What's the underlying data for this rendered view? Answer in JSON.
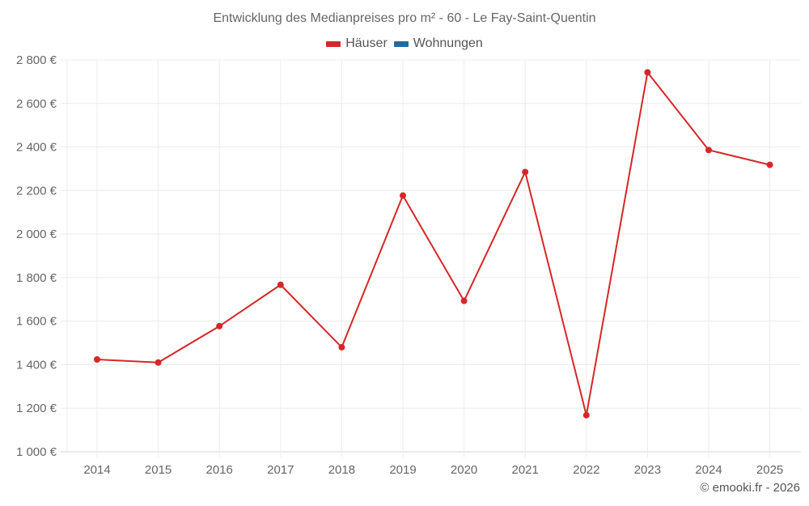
{
  "title": "Entwicklung des Medianpreises pro m² - 60 - Le Fay-Saint-Quentin",
  "legend": [
    {
      "label": "Häuser",
      "color": "#d62728"
    },
    {
      "label": "Wohnungen",
      "color": "#1f6aa5"
    }
  ],
  "credit": "© emooki.fr - 2026",
  "chart_data": {
    "type": "line",
    "title": "Entwicklung des Medianpreises pro m² - 60 - Le Fay-Saint-Quentin",
    "xlabel": "",
    "ylabel": "",
    "categories": [
      "2014",
      "2015",
      "2016",
      "2017",
      "2018",
      "2019",
      "2020",
      "2021",
      "2022",
      "2023",
      "2024",
      "2025"
    ],
    "series": [
      {
        "name": "Häuser",
        "color": "#d62728",
        "values": [
          1424,
          1410,
          1577,
          1767,
          1480,
          2177,
          1693,
          2285,
          1168,
          2743,
          2386,
          2318
        ]
      },
      {
        "name": "Wohnungen",
        "color": "#1f6aa5",
        "values": []
      }
    ],
    "ylim": [
      1000,
      2800
    ],
    "yticks": [
      1000,
      1200,
      1400,
      1600,
      1800,
      2000,
      2200,
      2400,
      2600,
      2800
    ],
    "ytick_labels": [
      "1 000 €",
      "1 200 €",
      "1 400 €",
      "1 600 €",
      "1 800 €",
      "2 000 €",
      "2 200 €",
      "2 400 €",
      "2 600 €",
      "2 800 €"
    ],
    "grid": true,
    "legend_position": "top"
  }
}
